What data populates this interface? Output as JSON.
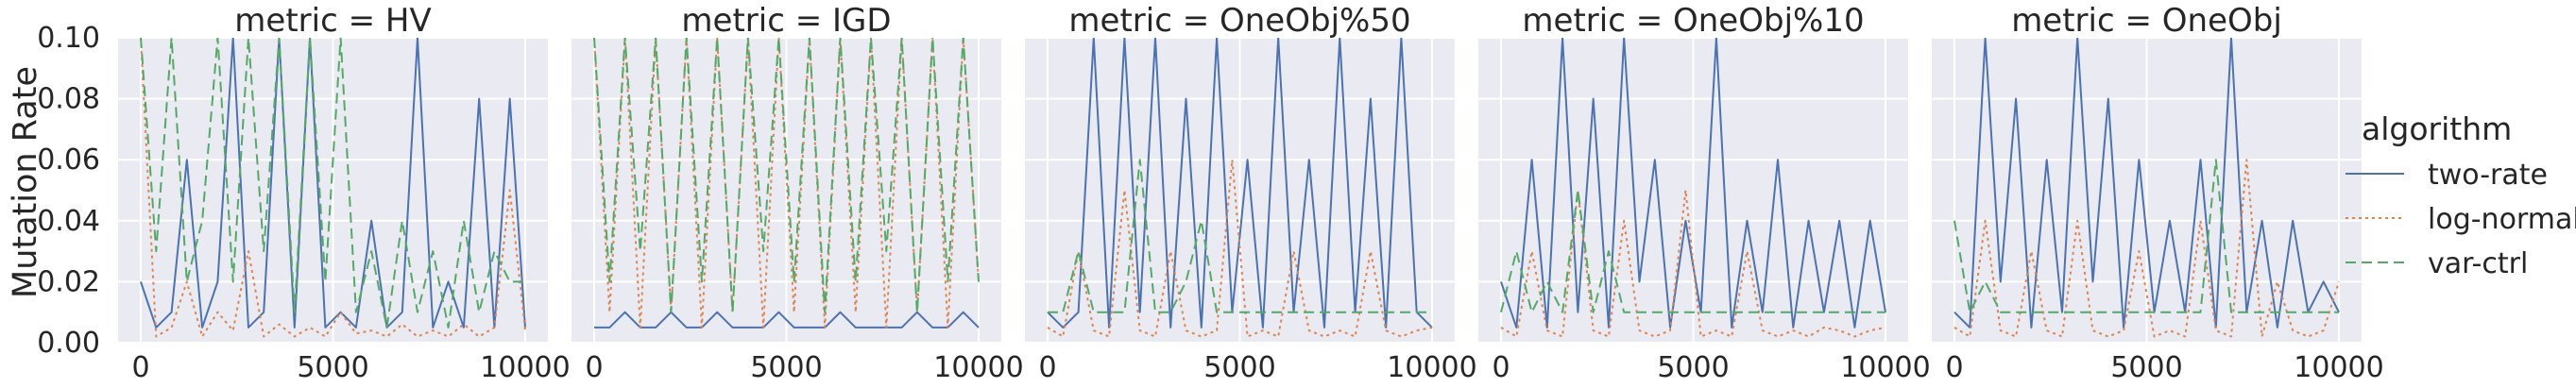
{
  "chart_data": {
    "type": "line",
    "layout": "faceted small multiples (5 panels, shared y axis)",
    "ylabel": "Mutation Rate",
    "ylim": [
      0,
      0.1
    ],
    "yticks": [
      "0.00",
      "0.02",
      "0.04",
      "0.06",
      "0.08",
      "0.10"
    ],
    "xlim": [
      0,
      10000
    ],
    "xticks": [
      "0",
      "5000",
      "10000"
    ],
    "grid": true,
    "legend_title": "algorithm",
    "legend_position": "right",
    "series_styles": [
      {
        "name": "two-rate",
        "color": "#4c72b0",
        "dash": "solid"
      },
      {
        "name": "log-normal",
        "color": "#dd8452",
        "dash": "dotted"
      },
      {
        "name": "var-ctrl",
        "color": "#55a868",
        "dash": "dashed"
      }
    ],
    "panels": [
      {
        "title": "metric = HV",
        "series": [
          {
            "name": "two-rate",
            "x": [
              0,
              400,
              800,
              1200,
              1600,
              2000,
              2400,
              2800,
              3200,
              3600,
              4000,
              4400,
              4800,
              5200,
              5600,
              6000,
              6400,
              6800,
              7200,
              7600,
              8000,
              8400,
              8800,
              9200,
              9600,
              10000
            ],
            "y": [
              0.02,
              0.005,
              0.01,
              0.06,
              0.005,
              0.02,
              0.1,
              0.005,
              0.01,
              0.1,
              0.005,
              0.1,
              0.005,
              0.01,
              0.005,
              0.04,
              0.005,
              0.01,
              0.1,
              0.005,
              0.02,
              0.005,
              0.08,
              0.005,
              0.08,
              0.005
            ]
          },
          {
            "name": "log-normal",
            "x": [
              0,
              400,
              800,
              1200,
              1600,
              2000,
              2400,
              2800,
              3200,
              3600,
              4000,
              4400,
              4800,
              5200,
              5600,
              6000,
              6400,
              6800,
              7200,
              7600,
              8000,
              8400,
              8800,
              9200,
              9600,
              10000
            ],
            "y": [
              0.1,
              0.002,
              0.005,
              0.02,
              0.002,
              0.01,
              0.004,
              0.03,
              0.002,
              0.006,
              0.002,
              0.005,
              0.002,
              0.01,
              0.003,
              0.004,
              0.002,
              0.006,
              0.002,
              0.004,
              0.002,
              0.006,
              0.002,
              0.005,
              0.05,
              0.004
            ]
          },
          {
            "name": "var-ctrl",
            "x": [
              0,
              400,
              800,
              1200,
              1600,
              2000,
              2400,
              2800,
              3200,
              3600,
              4000,
              4400,
              4800,
              5200,
              5600,
              6000,
              6400,
              6800,
              7200,
              7600,
              8000,
              8400,
              8800,
              9200,
              9600,
              10000
            ],
            "y": [
              0.1,
              0.03,
              0.1,
              0.02,
              0.04,
              0.1,
              0.02,
              0.1,
              0.03,
              0.1,
              0.01,
              0.1,
              0.02,
              0.1,
              0.01,
              0.03,
              0.005,
              0.04,
              0.01,
              0.03,
              0.005,
              0.04,
              0.01,
              0.03,
              0.02,
              0.02
            ]
          }
        ]
      },
      {
        "title": "metric = IGD",
        "series": [
          {
            "name": "two-rate",
            "x": [
              0,
              400,
              800,
              1200,
              1600,
              2000,
              2400,
              2800,
              3200,
              3600,
              4000,
              4400,
              4800,
              5200,
              5600,
              6000,
              6400,
              6800,
              7200,
              7600,
              8000,
              8400,
              8800,
              9200,
              9600,
              10000
            ],
            "y": [
              0.005,
              0.005,
              0.01,
              0.005,
              0.005,
              0.01,
              0.005,
              0.005,
              0.01,
              0.005,
              0.005,
              0.005,
              0.01,
              0.005,
              0.005,
              0.005,
              0.01,
              0.005,
              0.005,
              0.005,
              0.005,
              0.01,
              0.005,
              0.005,
              0.01,
              0.005
            ]
          },
          {
            "name": "log-normal",
            "x": [
              0,
              400,
              800,
              1200,
              1600,
              2000,
              2400,
              2800,
              3200,
              3600,
              4000,
              4400,
              4800,
              5200,
              5600,
              6000,
              6400,
              6800,
              7200,
              7600,
              8000,
              8400,
              8800,
              9200,
              9600,
              10000
            ],
            "y": [
              0.1,
              0.01,
              0.1,
              0.005,
              0.1,
              0.01,
              0.1,
              0.005,
              0.1,
              0.01,
              0.1,
              0.005,
              0.1,
              0.01,
              0.1,
              0.005,
              0.1,
              0.01,
              0.1,
              0.005,
              0.1,
              0.01,
              0.1,
              0.005,
              0.1,
              0.02
            ]
          },
          {
            "name": "var-ctrl",
            "x": [
              0,
              400,
              800,
              1200,
              1600,
              2000,
              2400,
              2800,
              3200,
              3600,
              4000,
              4400,
              4800,
              5200,
              5600,
              6000,
              6400,
              6800,
              7200,
              7600,
              8000,
              8400,
              8800,
              9200,
              9600,
              10000
            ],
            "y": [
              0.1,
              0.02,
              0.1,
              0.03,
              0.1,
              0.01,
              0.1,
              0.02,
              0.1,
              0.01,
              0.1,
              0.03,
              0.1,
              0.02,
              0.1,
              0.01,
              0.1,
              0.02,
              0.1,
              0.03,
              0.1,
              0.01,
              0.1,
              0.02,
              0.1,
              0.02
            ]
          }
        ]
      },
      {
        "title": "metric = OneObj%50",
        "series": [
          {
            "name": "two-rate",
            "x": [
              0,
              400,
              800,
              1200,
              1600,
              2000,
              2400,
              2800,
              3200,
              3600,
              4000,
              4400,
              4800,
              5200,
              5600,
              6000,
              6400,
              6800,
              7200,
              7600,
              8000,
              8400,
              8800,
              9200,
              9600,
              10000
            ],
            "y": [
              0.01,
              0.005,
              0.01,
              0.1,
              0.005,
              0.1,
              0.01,
              0.1,
              0.005,
              0.08,
              0.005,
              0.1,
              0.01,
              0.06,
              0.005,
              0.1,
              0.01,
              0.06,
              0.005,
              0.1,
              0.01,
              0.08,
              0.005,
              0.1,
              0.01,
              0.005
            ]
          },
          {
            "name": "log-normal",
            "x": [
              0,
              400,
              800,
              1200,
              1600,
              2000,
              2400,
              2800,
              3200,
              3600,
              4000,
              4400,
              4800,
              5200,
              5600,
              6000,
              6400,
              6800,
              7200,
              7600,
              8000,
              8400,
              8800,
              9200,
              9600,
              10000
            ],
            "y": [
              0.005,
              0.002,
              0.03,
              0.004,
              0.002,
              0.05,
              0.004,
              0.002,
              0.03,
              0.004,
              0.002,
              0.004,
              0.06,
              0.002,
              0.004,
              0.002,
              0.03,
              0.004,
              0.002,
              0.004,
              0.002,
              0.03,
              0.004,
              0.002,
              0.004,
              0.005
            ]
          },
          {
            "name": "var-ctrl",
            "x": [
              0,
              400,
              800,
              1200,
              1600,
              2000,
              2400,
              2800,
              3200,
              3600,
              4000,
              4400,
              4800,
              5200,
              5600,
              6000,
              6400,
              6800,
              7200,
              7600,
              8000,
              8400,
              8800,
              9200,
              9600,
              10000
            ],
            "y": [
              0.01,
              0.01,
              0.03,
              0.01,
              0.01,
              0.01,
              0.06,
              0.01,
              0.01,
              0.02,
              0.04,
              0.01,
              0.01,
              0.01,
              0.01,
              0.01,
              0.01,
              0.01,
              0.01,
              0.01,
              0.01,
              0.01,
              0.01,
              0.01,
              0.01,
              0.01
            ]
          }
        ]
      },
      {
        "title": "metric = OneObj%10",
        "series": [
          {
            "name": "two-rate",
            "x": [
              0,
              400,
              800,
              1200,
              1600,
              2000,
              2400,
              2800,
              3200,
              3600,
              4000,
              4400,
              4800,
              5200,
              5600,
              6000,
              6400,
              6800,
              7200,
              7600,
              8000,
              8400,
              8800,
              9200,
              9600,
              10000
            ],
            "y": [
              0.02,
              0.005,
              0.06,
              0.005,
              0.1,
              0.01,
              0.08,
              0.005,
              0.1,
              0.02,
              0.06,
              0.005,
              0.04,
              0.01,
              0.1,
              0.005,
              0.04,
              0.01,
              0.06,
              0.005,
              0.04,
              0.01,
              0.04,
              0.005,
              0.04,
              0.01
            ]
          },
          {
            "name": "log-normal",
            "x": [
              0,
              400,
              800,
              1200,
              1600,
              2000,
              2400,
              2800,
              3200,
              3600,
              4000,
              4400,
              4800,
              5200,
              5600,
              6000,
              6400,
              6800,
              7200,
              7600,
              8000,
              8400,
              8800,
              9200,
              9600,
              10000
            ],
            "y": [
              0.005,
              0.002,
              0.03,
              0.004,
              0.002,
              0.05,
              0.004,
              0.002,
              0.04,
              0.004,
              0.002,
              0.004,
              0.05,
              0.002,
              0.004,
              0.002,
              0.03,
              0.004,
              0.002,
              0.004,
              0.002,
              0.005,
              0.004,
              0.002,
              0.004,
              0.005
            ]
          },
          {
            "name": "var-ctrl",
            "x": [
              0,
              400,
              800,
              1200,
              1600,
              2000,
              2400,
              2800,
              3200,
              3600,
              4000,
              4400,
              4800,
              5200,
              5600,
              6000,
              6400,
              6800,
              7200,
              7600,
              8000,
              8400,
              8800,
              9200,
              9600,
              10000
            ],
            "y": [
              0.01,
              0.03,
              0.01,
              0.02,
              0.01,
              0.05,
              0.01,
              0.03,
              0.01,
              0.01,
              0.01,
              0.01,
              0.01,
              0.01,
              0.01,
              0.01,
              0.01,
              0.01,
              0.01,
              0.01,
              0.01,
              0.01,
              0.01,
              0.01,
              0.01,
              0.01
            ]
          }
        ]
      },
      {
        "title": "metric = OneObj",
        "series": [
          {
            "name": "two-rate",
            "x": [
              0,
              400,
              800,
              1200,
              1600,
              2000,
              2400,
              2800,
              3200,
              3600,
              4000,
              4400,
              4800,
              5200,
              5600,
              6000,
              6400,
              6800,
              7200,
              7600,
              8000,
              8400,
              8800,
              9200,
              9600,
              10000
            ],
            "y": [
              0.01,
              0.005,
              0.1,
              0.02,
              0.08,
              0.005,
              0.06,
              0.01,
              0.1,
              0.02,
              0.08,
              0.005,
              0.06,
              0.01,
              0.04,
              0.01,
              0.06,
              0.005,
              0.1,
              0.01,
              0.04,
              0.005,
              0.04,
              0.01,
              0.02,
              0.01
            ]
          },
          {
            "name": "log-normal",
            "x": [
              0,
              400,
              800,
              1200,
              1600,
              2000,
              2400,
              2800,
              3200,
              3600,
              4000,
              4400,
              4800,
              5200,
              5600,
              6000,
              6400,
              6800,
              7200,
              7600,
              8000,
              8400,
              8800,
              9200,
              9600,
              10000
            ],
            "y": [
              0.005,
              0.002,
              0.04,
              0.004,
              0.002,
              0.03,
              0.004,
              0.002,
              0.04,
              0.004,
              0.002,
              0.004,
              0.03,
              0.002,
              0.004,
              0.002,
              0.04,
              0.004,
              0.002,
              0.06,
              0.002,
              0.02,
              0.004,
              0.002,
              0.004,
              0.02
            ]
          },
          {
            "name": "var-ctrl",
            "x": [
              0,
              400,
              800,
              1200,
              1600,
              2000,
              2400,
              2800,
              3200,
              3600,
              4000,
              4400,
              4800,
              5200,
              5600,
              6000,
              6400,
              6800,
              7200,
              7600,
              8000,
              8400,
              8800,
              9200,
              9600,
              10000
            ],
            "y": [
              0.04,
              0.01,
              0.02,
              0.01,
              0.01,
              0.01,
              0.01,
              0.01,
              0.01,
              0.01,
              0.01,
              0.01,
              0.01,
              0.01,
              0.01,
              0.01,
              0.01,
              0.06,
              0.01,
              0.01,
              0.01,
              0.01,
              0.01,
              0.01,
              0.01,
              0.01
            ]
          }
        ]
      }
    ]
  }
}
